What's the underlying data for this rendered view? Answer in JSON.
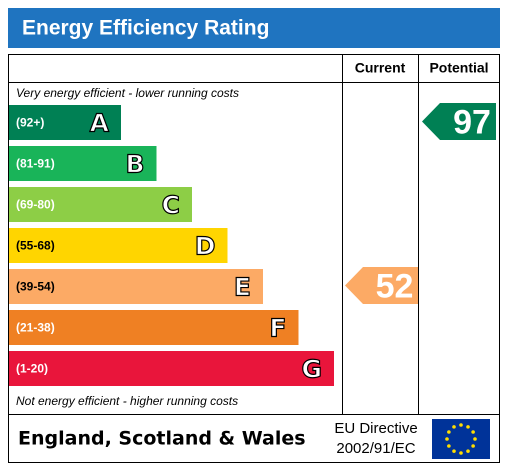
{
  "header": {
    "title": "Energy Efficiency Rating"
  },
  "columns": [
    "Current",
    "Potential"
  ],
  "top_note": "Very energy efficient - lower running costs",
  "bottom_note": "Not energy efficient - higher running costs",
  "bands": [
    {
      "range": "(92+)",
      "letter": "A",
      "color": "#008054"
    },
    {
      "range": "(81-91)",
      "letter": "B",
      "color": "#19b459"
    },
    {
      "range": "(69-80)",
      "letter": "C",
      "color": "#8dce46"
    },
    {
      "range": "(55-68)",
      "letter": "D",
      "color": "#ffd500"
    },
    {
      "range": "(39-54)",
      "letter": "E",
      "color": "#fcaa65"
    },
    {
      "range": "(21-38)",
      "letter": "F",
      "color": "#ef8023"
    },
    {
      "range": "(1-20)",
      "letter": "G",
      "color": "#e9153b"
    }
  ],
  "current": {
    "value": 52,
    "color": "#fcaa65"
  },
  "potential": {
    "value": 97,
    "color": "#008054"
  },
  "footer": {
    "region": "England, Scotland & Wales",
    "directive": [
      "EU Directive",
      "2002/91/EC"
    ]
  }
}
